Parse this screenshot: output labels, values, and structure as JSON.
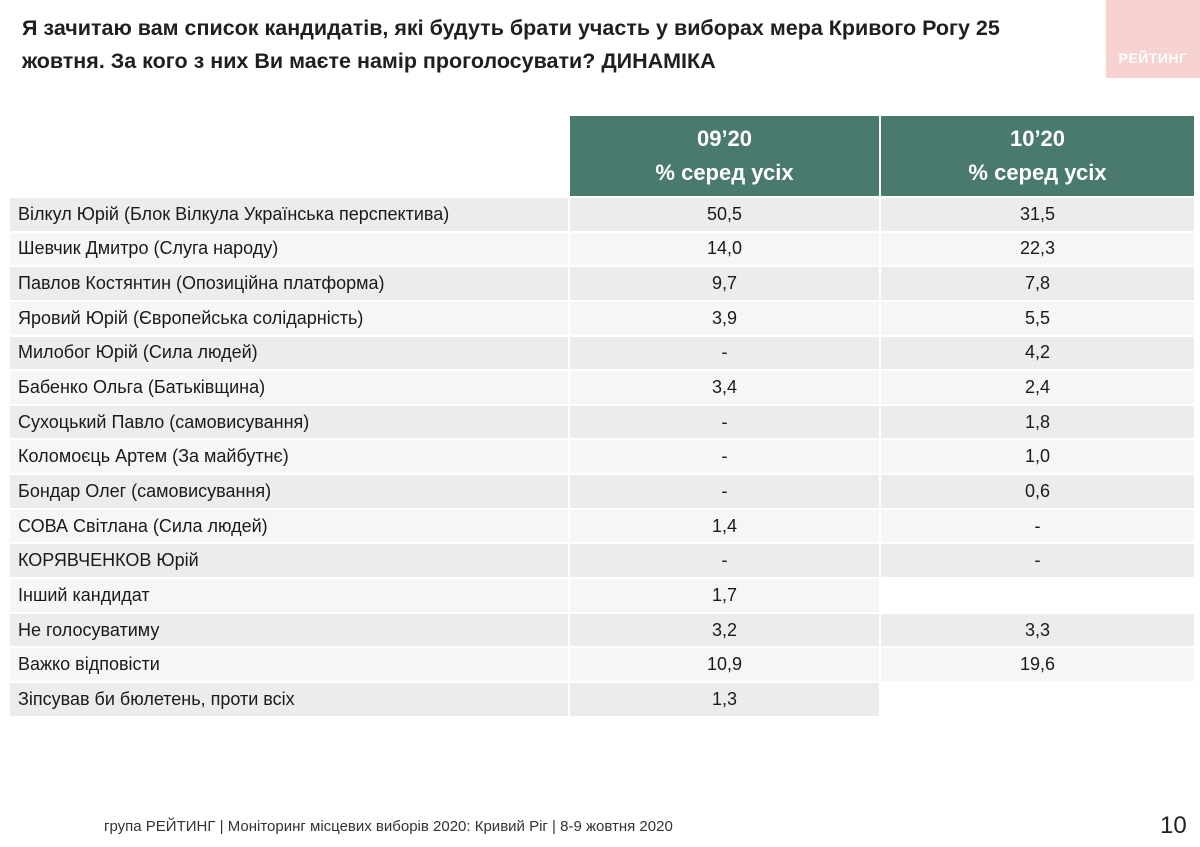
{
  "title": {
    "line1": "Я зачитаю вам список кандидатів, які будуть брати участь у виборах мера Кривого Рогу 25",
    "line2": "жовтня. За кого з них Ви маєте намір проголосувати? ДИНАМІКА"
  },
  "logo": {
    "text": "РЕЙТИНГ"
  },
  "table": {
    "columns": [
      {
        "period": "09’20",
        "subtitle": "% серед усіх"
      },
      {
        "period": "10’20",
        "subtitle": "% серед усіх"
      }
    ],
    "rows": [
      {
        "name": "Вілкул Юрій (Блок Вілкула Українська перспектива)",
        "v1": "50,5",
        "v2": "31,5"
      },
      {
        "name": "Шевчик Дмитро (Слуга народу)",
        "v1": "14,0",
        "v2": "22,3"
      },
      {
        "name": "Павлов Костянтин (Опозиційна платформа)",
        "v1": "9,7",
        "v2": "7,8"
      },
      {
        "name": "Яровий Юрій (Європейська солідарність)",
        "v1": "3,9",
        "v2": "5,5"
      },
      {
        "name": "Милобог Юрій (Сила людей)",
        "v1": "-",
        "v2": "4,2"
      },
      {
        "name": "Бабенко Ольга (Батьківщина)",
        "v1": "3,4",
        "v2": "2,4"
      },
      {
        "name": "Сухоцький Павло (самовисування)",
        "v1": "-",
        "v2": "1,8"
      },
      {
        "name": "Коломоєць Артем (За майбутнє)",
        "v1": "-",
        "v2": "1,0"
      },
      {
        "name": "Бондар Олег (самовисування)",
        "v1": "-",
        "v2": "0,6"
      },
      {
        "name": "СОВА Світлана (Сила людей)",
        "v1": "1,4",
        "v2": "-"
      },
      {
        "name": "КОРЯВЧЕНКОВ Юрій",
        "v1": "-",
        "v2": "-"
      },
      {
        "name": "Інший кандидат",
        "v1": "1,7",
        "v2": ""
      },
      {
        "name": "Не голосуватиму",
        "v1": "3,2",
        "v2": "3,3"
      },
      {
        "name": "Важко відповісти",
        "v1": "10,9",
        "v2": "19,6"
      },
      {
        "name": "Зіпсував би бюлетень, проти всіх",
        "v1": "1,3",
        "v2": ""
      }
    ]
  },
  "footer": {
    "text": "група РЕЙТИНГ  | Моніторинг місцевих виборів 2020: Кривий Ріг |  8-9 жовтня 2020"
  },
  "page_number": "10",
  "colors": {
    "header_bg": "#4a7a6d",
    "logo_bg": "#f6d2d0",
    "row_odd": "#ececec",
    "row_even": "#f6f6f6"
  }
}
